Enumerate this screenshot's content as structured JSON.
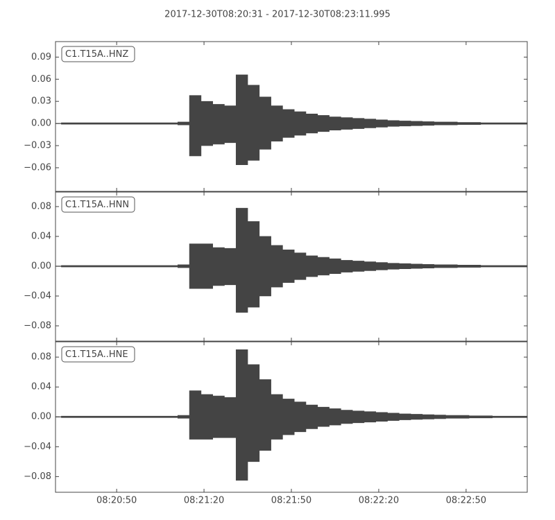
{
  "title": "2017-12-30T08:20:31  -  2017-12-30T08:23:11.995",
  "chart_data": [
    {
      "type": "envelope",
      "label": "C1.T15A..HNZ",
      "color": "#444444",
      "x": [
        "08:20:31",
        "08:20:35",
        "08:20:39",
        "08:20:43",
        "08:20:47",
        "08:20:51",
        "08:20:55",
        "08:20:59",
        "08:21:03",
        "08:21:07",
        "08:21:11",
        "08:21:15",
        "08:21:19",
        "08:21:23",
        "08:21:27",
        "08:21:31",
        "08:21:35",
        "08:21:39",
        "08:21:43",
        "08:21:47",
        "08:21:51",
        "08:21:55",
        "08:21:59",
        "08:22:03",
        "08:22:07",
        "08:22:11",
        "08:22:15",
        "08:22:19",
        "08:22:23",
        "08:22:27",
        "08:22:31",
        "08:22:35",
        "08:22:39",
        "08:22:43",
        "08:22:47",
        "08:22:51",
        "08:22:55",
        "08:22:59",
        "08:23:03",
        "08:23:07",
        "08:23:11"
      ],
      "upper": [
        0.001,
        0.001,
        0.001,
        0.001,
        0.001,
        0.001,
        0.001,
        0.001,
        0.001,
        0.001,
        0.002,
        0.038,
        0.03,
        0.026,
        0.024,
        0.066,
        0.052,
        0.036,
        0.024,
        0.019,
        0.016,
        0.013,
        0.011,
        0.009,
        0.008,
        0.007,
        0.006,
        0.005,
        0.004,
        0.0035,
        0.003,
        0.0025,
        0.002,
        0.002,
        0.0015,
        0.0015,
        0.001,
        0.001,
        0.001,
        0.001,
        0.001
      ],
      "lower": [
        -0.001,
        -0.001,
        -0.001,
        -0.001,
        -0.001,
        -0.001,
        -0.001,
        -0.001,
        -0.001,
        -0.001,
        -0.002,
        -0.044,
        -0.03,
        -0.028,
        -0.026,
        -0.056,
        -0.05,
        -0.035,
        -0.024,
        -0.019,
        -0.016,
        -0.013,
        -0.011,
        -0.009,
        -0.008,
        -0.007,
        -0.006,
        -0.005,
        -0.004,
        -0.0035,
        -0.003,
        -0.0025,
        -0.002,
        -0.002,
        -0.0015,
        -0.0015,
        -0.001,
        -0.001,
        -0.001,
        -0.001,
        -0.001
      ],
      "xlim": [
        "08:20:29",
        "08:23:11"
      ],
      "xticks": [
        "08:20:50",
        "08:21:20",
        "08:21:50",
        "08:22:20",
        "08:22:50"
      ],
      "ylim": [
        -0.092,
        0.111
      ],
      "yticks": [
        {
          "value": -0.06,
          "label": "−0.06"
        },
        {
          "value": -0.03,
          "label": "−0.03"
        },
        {
          "value": 0,
          "label": "0.00"
        },
        0.03,
        0.06,
        0.09
      ]
    },
    {
      "type": "envelope",
      "label": "C1.T15A..HNN",
      "color": "#444444",
      "x": [
        "08:20:31",
        "08:20:35",
        "08:20:39",
        "08:20:43",
        "08:20:47",
        "08:20:51",
        "08:20:55",
        "08:20:59",
        "08:21:03",
        "08:21:07",
        "08:21:11",
        "08:21:15",
        "08:21:19",
        "08:21:23",
        "08:21:27",
        "08:21:31",
        "08:21:35",
        "08:21:39",
        "08:21:43",
        "08:21:47",
        "08:21:51",
        "08:21:55",
        "08:21:59",
        "08:22:03",
        "08:22:07",
        "08:22:11",
        "08:22:15",
        "08:22:19",
        "08:22:23",
        "08:22:27",
        "08:22:31",
        "08:22:35",
        "08:22:39",
        "08:22:43",
        "08:22:47",
        "08:22:51",
        "08:22:55",
        "08:22:59",
        "08:23:03",
        "08:23:07",
        "08:23:11"
      ],
      "upper": [
        0.001,
        0.001,
        0.001,
        0.001,
        0.001,
        0.001,
        0.001,
        0.001,
        0.001,
        0.001,
        0.002,
        0.03,
        0.03,
        0.025,
        0.024,
        0.078,
        0.06,
        0.04,
        0.028,
        0.022,
        0.018,
        0.014,
        0.012,
        0.01,
        0.008,
        0.007,
        0.006,
        0.005,
        0.004,
        0.0035,
        0.003,
        0.0025,
        0.002,
        0.002,
        0.0015,
        0.0015,
        0.001,
        0.001,
        0.001,
        0.001,
        0.001
      ],
      "lower": [
        -0.001,
        -0.001,
        -0.001,
        -0.001,
        -0.001,
        -0.001,
        -0.001,
        -0.001,
        -0.001,
        -0.001,
        -0.002,
        -0.03,
        -0.03,
        -0.026,
        -0.025,
        -0.062,
        -0.055,
        -0.04,
        -0.028,
        -0.022,
        -0.018,
        -0.014,
        -0.012,
        -0.01,
        -0.008,
        -0.007,
        -0.006,
        -0.005,
        -0.004,
        -0.0035,
        -0.003,
        -0.0025,
        -0.002,
        -0.002,
        -0.0015,
        -0.0015,
        -0.001,
        -0.001,
        -0.001,
        -0.001,
        -0.001
      ],
      "xlim": [
        "08:20:29",
        "08:23:11"
      ],
      "xticks": [
        "08:20:50",
        "08:21:20",
        "08:21:50",
        "08:22:20",
        "08:22:50"
      ],
      "ylim": [
        -0.1005,
        0.0995
      ],
      "yticks": [
        {
          "value": -0.08,
          "label": "−0.08"
        },
        {
          "value": -0.04,
          "label": "−0.04"
        },
        {
          "value": 0,
          "label": "0.00"
        },
        0.04,
        0.08
      ]
    },
    {
      "type": "envelope",
      "label": "C1.T15A..HNE",
      "color": "#444444",
      "x": [
        "08:20:31",
        "08:20:35",
        "08:20:39",
        "08:20:43",
        "08:20:47",
        "08:20:51",
        "08:20:55",
        "08:20:59",
        "08:21:03",
        "08:21:07",
        "08:21:11",
        "08:21:15",
        "08:21:19",
        "08:21:23",
        "08:21:27",
        "08:21:31",
        "08:21:35",
        "08:21:39",
        "08:21:43",
        "08:21:47",
        "08:21:51",
        "08:21:55",
        "08:21:59",
        "08:22:03",
        "08:22:07",
        "08:22:11",
        "08:22:15",
        "08:22:19",
        "08:22:23",
        "08:22:27",
        "08:22:31",
        "08:22:35",
        "08:22:39",
        "08:22:43",
        "08:22:47",
        "08:22:51",
        "08:22:55",
        "08:22:59",
        "08:23:03",
        "08:23:07",
        "08:23:11"
      ],
      "upper": [
        0.001,
        0.001,
        0.001,
        0.001,
        0.001,
        0.001,
        0.001,
        0.001,
        0.001,
        0.001,
        0.002,
        0.035,
        0.03,
        0.028,
        0.026,
        0.09,
        0.07,
        0.05,
        0.03,
        0.024,
        0.02,
        0.016,
        0.013,
        0.011,
        0.009,
        0.008,
        0.007,
        0.006,
        0.005,
        0.004,
        0.0035,
        0.003,
        0.0025,
        0.002,
        0.002,
        0.0015,
        0.0015,
        0.001,
        0.001,
        0.001,
        0.001
      ],
      "lower": [
        -0.001,
        -0.001,
        -0.001,
        -0.001,
        -0.001,
        -0.001,
        -0.001,
        -0.001,
        -0.001,
        -0.001,
        -0.002,
        -0.03,
        -0.03,
        -0.028,
        -0.028,
        -0.085,
        -0.06,
        -0.045,
        -0.03,
        -0.024,
        -0.02,
        -0.016,
        -0.013,
        -0.011,
        -0.009,
        -0.008,
        -0.007,
        -0.006,
        -0.005,
        -0.004,
        -0.0035,
        -0.003,
        -0.0025,
        -0.002,
        -0.002,
        -0.0015,
        -0.0015,
        -0.001,
        -0.001,
        -0.001,
        -0.001
      ],
      "xlim": [
        "08:20:29",
        "08:23:11"
      ],
      "xticks": [
        "08:20:50",
        "08:21:20",
        "08:21:50",
        "08:22:20",
        "08:22:50"
      ],
      "ylim": [
        -0.101,
        0.1005
      ],
      "yticks": [
        {
          "value": -0.08,
          "label": "−0.08"
        },
        {
          "value": -0.04,
          "label": "−0.04"
        },
        {
          "value": 0,
          "label": "0.00"
        },
        0.04,
        0.08
      ]
    }
  ]
}
